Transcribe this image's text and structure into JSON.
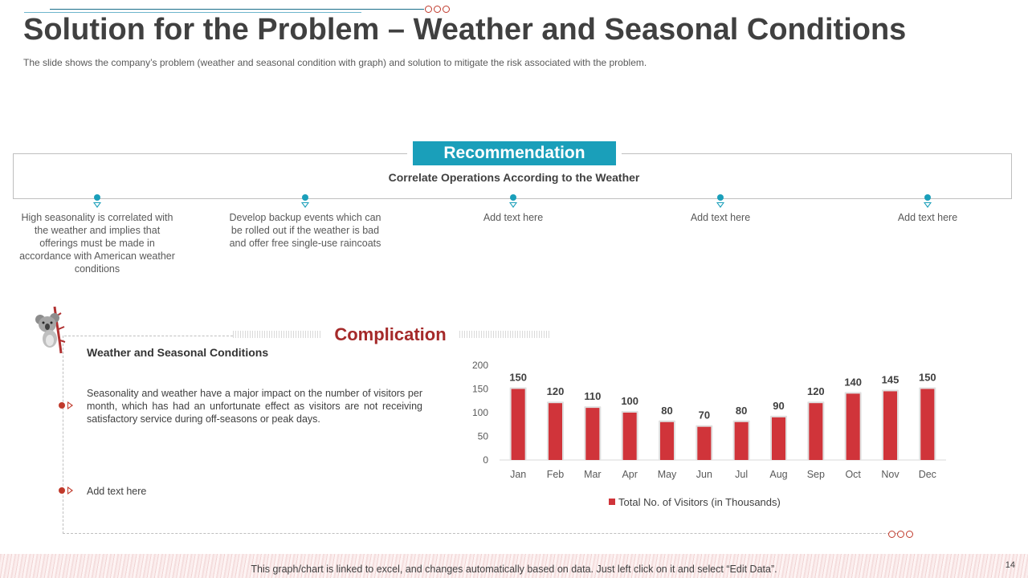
{
  "slide": {
    "title": "Solution for the Problem – Weather and Seasonal Conditions",
    "subtitle": "The slide shows the company’s problem (weather and seasonal condition with graph) and solution to mitigate the risk associated with the problem.",
    "page_number": "14"
  },
  "recommendation": {
    "badge": "Recommendation",
    "heading": "Correlate Operations According to the Weather",
    "points": [
      "High seasonality is correlated with the weather and implies that offerings must be made in accordance with American weather conditions",
      "Develop backup events which can be rolled out if the weather is bad and offer free single-use raincoats",
      "Add text here",
      "Add text here",
      "Add text here"
    ]
  },
  "complication": {
    "title": "Complication",
    "subheading": "Weather and Seasonal Conditions",
    "body": "Seasonality and weather have a major impact on the number of visitors per month, which has had an unfortunate effect as visitors are not receiving satisfactory service during off-seasons or peak days.",
    "add_text": "Add text here"
  },
  "chart_data": {
    "type": "bar",
    "title": "",
    "categories": [
      "Jan",
      "Feb",
      "Mar",
      "Apr",
      "May",
      "Jun",
      "Jul",
      "Aug",
      "Sep",
      "Oct",
      "Nov",
      "Dec"
    ],
    "series": [
      {
        "name": "Total No. of Visitors (in Thousands)",
        "values": [
          150,
          120,
          110,
          100,
          80,
          70,
          80,
          90,
          120,
          140,
          145,
          150
        ]
      }
    ],
    "y_ticks": [
      0,
      50,
      100,
      150,
      200
    ],
    "ylim": [
      0,
      200
    ],
    "xlabel": "",
    "ylabel": "",
    "legend_position": "bottom",
    "bar_color": "#d0343a"
  },
  "footer": {
    "note": "This graph/chart is linked to excel, and changes automatically based on data. Just left click on it and select “Edit Data”."
  },
  "colors": {
    "accent": "#1a9fba",
    "complication": "#a52a2a",
    "bar": "#d0343a"
  }
}
